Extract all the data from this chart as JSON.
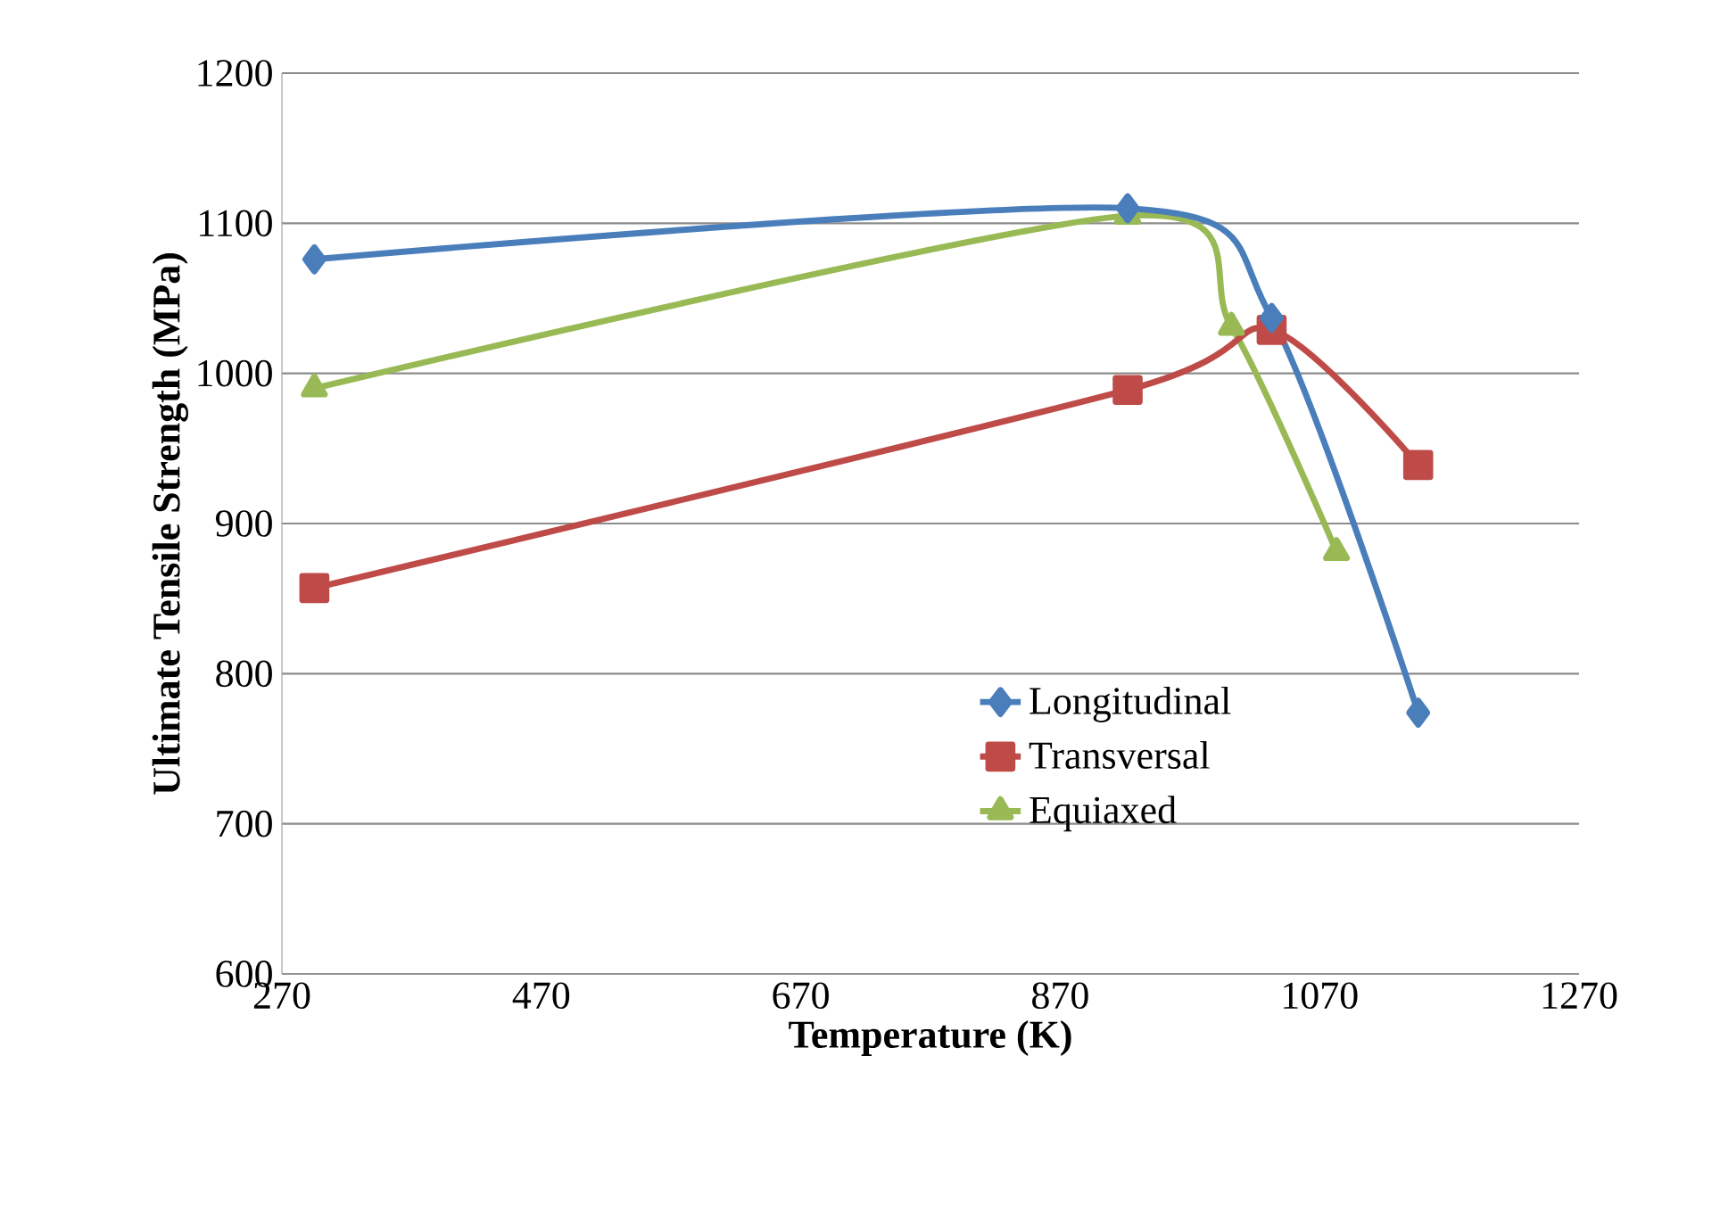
{
  "chart_data": {
    "type": "line",
    "xlabel": "Temperature (K)",
    "ylabel": "Ultimate Tensile Strength (MPa)",
    "xlim": [
      270,
      1270
    ],
    "xticks": [
      270,
      470,
      670,
      870,
      1070,
      1270
    ],
    "ylim": [
      600,
      1200
    ],
    "yticks": [
      600,
      700,
      800,
      900,
      1000,
      1100,
      1200
    ],
    "grid": "y",
    "legend": "bottom right",
    "series": [
      {
        "name": "Longitudinal",
        "color": "#4a7ebb",
        "marker": "diamond",
        "x": [
          295,
          922,
          1033,
          1146
        ],
        "values": [
          1076,
          1110,
          1037,
          774
        ]
      },
      {
        "name": "Transversal",
        "color": "#be4b48",
        "marker": "square",
        "x": [
          295,
          922,
          1033,
          1146
        ],
        "values": [
          857,
          989,
          1029,
          939
        ]
      },
      {
        "name": "Equiaxed",
        "color": "#98b954",
        "marker": "triangle",
        "x": [
          295,
          922,
          1002,
          1083
        ],
        "values": [
          990,
          1105,
          1031,
          881
        ]
      }
    ]
  }
}
